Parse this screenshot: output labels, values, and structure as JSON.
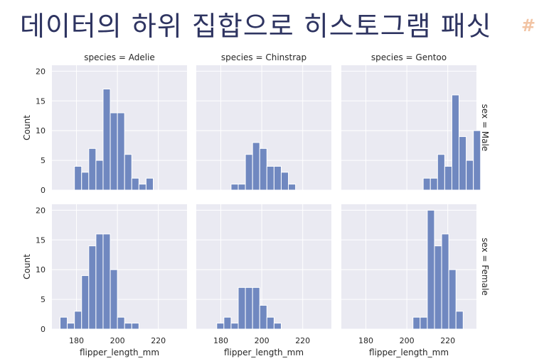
{
  "page": {
    "title": "데이터의 하위 집합으로 히스토그램 패싯",
    "hash_symbol": "#"
  },
  "chart_data": {
    "type": "bar",
    "subtype": "histogram-facet-grid",
    "col_facet": "species",
    "row_facet": "sex",
    "col_titles": [
      "species = Adelie",
      "species = Chinstrap",
      "species = Gentoo"
    ],
    "row_titles": [
      "sex = Male",
      "sex = Female"
    ],
    "xlabel": "flipper_length_mm",
    "ylabel": "Count",
    "xlim": [
      168,
      234
    ],
    "ylim": [
      0,
      21
    ],
    "xticks": [
      180,
      200,
      220
    ],
    "yticks": [
      0,
      5,
      10,
      15,
      20
    ],
    "bin_start": 172,
    "bin_width": 3.5,
    "grid": true,
    "colors": {
      "bar": "#7088c0",
      "bar_edge": "#ffffff",
      "axes_bg": "#eaeaf2",
      "grid": "#ffffff"
    },
    "panels": [
      {
        "row": "Male",
        "col": "Adelie",
        "counts": [
          0,
          0,
          4,
          3,
          7,
          5,
          17,
          13,
          13,
          6,
          2,
          1,
          2,
          0,
          0,
          0,
          0,
          0
        ]
      },
      {
        "row": "Male",
        "col": "Chinstrap",
        "counts": [
          0,
          0,
          0,
          0,
          0,
          0,
          0,
          0,
          0,
          0,
          0,
          0,
          0,
          0,
          0,
          0,
          0,
          0
        ]
      },
      {
        "row": "Male",
        "col": "Gentoo",
        "counts": [
          0,
          0,
          0,
          0,
          0,
          0,
          0,
          0,
          0,
          0,
          0,
          0,
          0,
          0,
          0,
          0,
          0,
          0
        ]
      },
      {
        "row": "Female",
        "col": "Adelie",
        "counts": [
          2,
          1,
          3,
          9,
          14,
          16,
          16,
          10,
          2,
          1,
          1,
          0,
          0,
          0,
          0,
          0,
          0,
          0
        ]
      },
      {
        "row": "Female",
        "col": "Chinstrap",
        "counts": [
          0,
          0,
          0,
          0,
          0,
          0,
          0,
          0,
          0,
          0,
          0,
          0,
          0,
          0,
          0,
          0,
          0,
          0
        ]
      },
      {
        "row": "Female",
        "col": "Gentoo",
        "counts": [
          0,
          0,
          0,
          0,
          0,
          0,
          0,
          0,
          0,
          0,
          0,
          0,
          0,
          0,
          0,
          0,
          0,
          0
        ]
      }
    ],
    "panel_overrides": [
      {
        "row": "Male",
        "col": "Chinstrap",
        "bin_start": 185,
        "counts": [
          1,
          1,
          6,
          8,
          7,
          4,
          4,
          3,
          1
        ]
      },
      {
        "row": "Male",
        "col": "Gentoo",
        "bin_start": 208,
        "counts": [
          2,
          2,
          6,
          4,
          16,
          9,
          5,
          10
        ]
      },
      {
        "row": "Female",
        "col": "Chinstrap",
        "bin_start": 178,
        "counts": [
          1,
          2,
          1,
          7,
          7,
          7,
          4,
          2,
          1
        ]
      },
      {
        "row": "Female",
        "col": "Gentoo",
        "bin_start": 203,
        "counts": [
          2,
          2,
          20,
          14,
          16,
          10,
          3
        ]
      }
    ]
  }
}
